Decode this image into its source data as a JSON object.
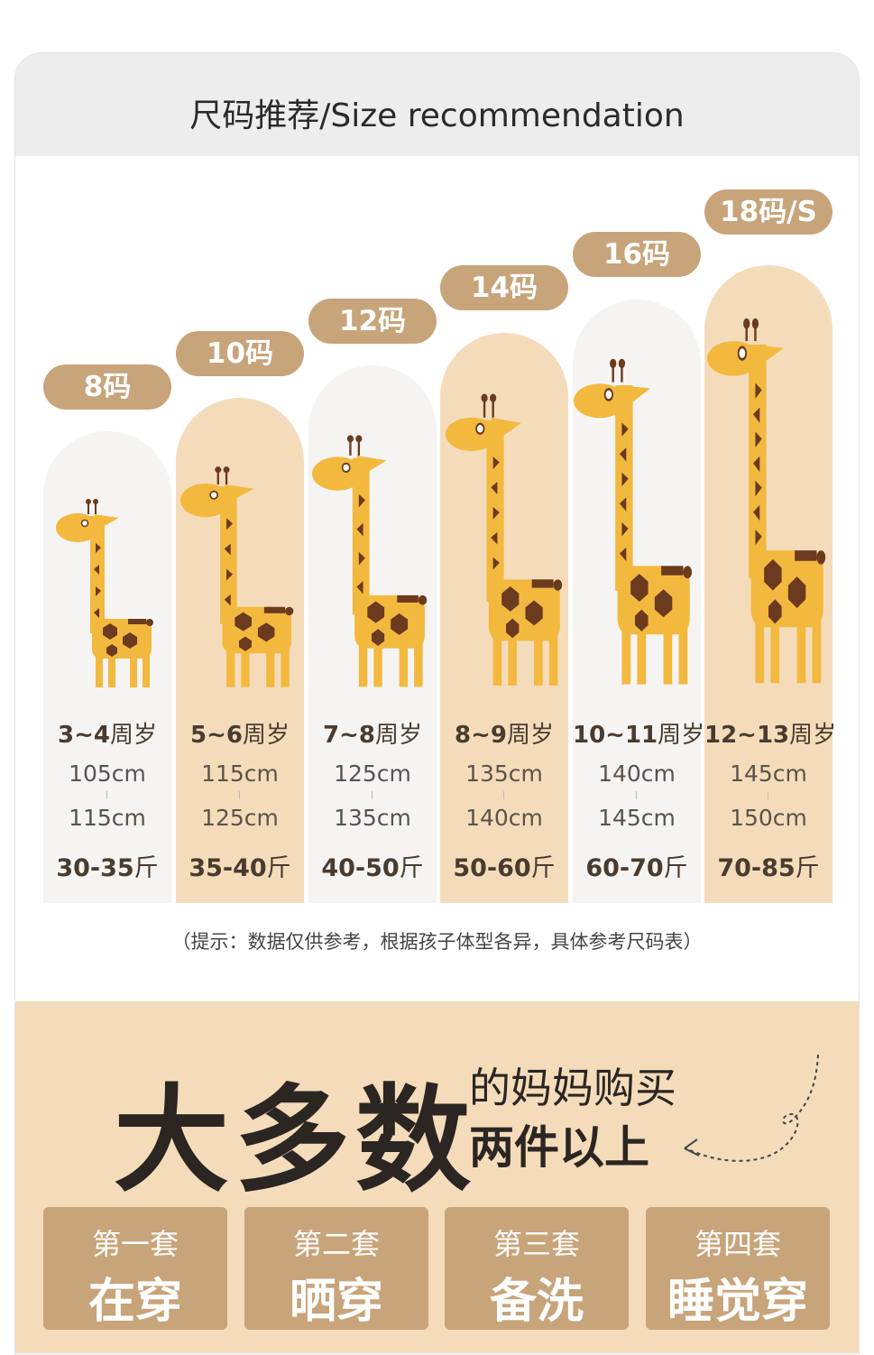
{
  "header": {
    "title": "尺码推荐/Size recommendation"
  },
  "sizes": [
    {
      "label": "8码",
      "age": "3~4",
      "age_suffix": "周岁",
      "height_from": "105cm",
      "height_to": "115cm",
      "weight": "30-35",
      "weight_suffix": "斤"
    },
    {
      "label": "10码",
      "age": "5~6",
      "age_suffix": "周岁",
      "height_from": "115cm",
      "height_to": "125cm",
      "weight": "35-40",
      "weight_suffix": "斤"
    },
    {
      "label": "12码",
      "age": "7~8",
      "age_suffix": "周岁",
      "height_from": "125cm",
      "height_to": "135cm",
      "weight": "40-50",
      "weight_suffix": "斤"
    },
    {
      "label": "14码",
      "age": "8~9",
      "age_suffix": "周岁",
      "height_from": "135cm",
      "height_to": "140cm",
      "weight": "50-60",
      "weight_suffix": "斤"
    },
    {
      "label": "16码",
      "age": "10~11",
      "age_suffix": "周岁",
      "height_from": "140cm",
      "height_to": "145cm",
      "weight": "60-70",
      "weight_suffix": "斤"
    },
    {
      "label": "18码/S",
      "age": "12~13",
      "age_suffix": "周岁",
      "height_from": "145cm",
      "height_to": "150cm",
      "weight": "70-85",
      "weight_suffix": "斤"
    }
  ],
  "note": "（提示：数据仅供参考，根据孩子体型各异，具体参考尺码表）",
  "promo": {
    "big_text": "大多数",
    "line1": "的妈妈购买",
    "line2": "两件以上",
    "sets": [
      {
        "title": "第一套",
        "desc": "在穿"
      },
      {
        "title": "第二套",
        "desc": "晒穿"
      },
      {
        "title": "第三套",
        "desc": "备洗"
      },
      {
        "title": "第四套",
        "desc": "睡觉穿"
      }
    ]
  },
  "colors": {
    "pill": "#c8a47a",
    "bar_light": "#f5f4f2",
    "bar_tan": "#f4dcbb",
    "giraffe_body": "#f3b83e",
    "giraffe_spots": "#6b3a1f"
  }
}
